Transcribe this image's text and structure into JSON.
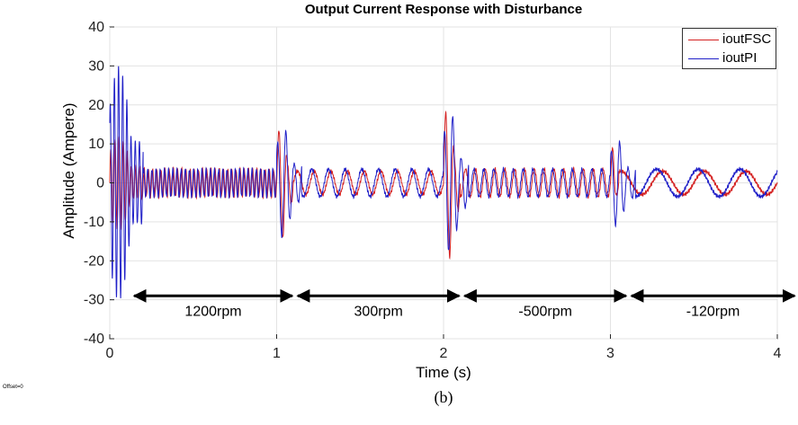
{
  "chart_data": {
    "type": "line",
    "title": "Output Current Response with Disturbance",
    "xlabel": "Time (s)",
    "ylabel": "Amplitude (Ampere)",
    "xlim": [
      0,
      4
    ],
    "ylim": [
      -40,
      40
    ],
    "xticks": [
      0,
      1,
      2,
      3,
      4
    ],
    "yticks": [
      40,
      30,
      20,
      10,
      0,
      -10,
      -20,
      -30,
      -40
    ],
    "grid": true,
    "legend_position": "top-right",
    "series": [
      {
        "name": "ioutFSC",
        "color": "#d42020",
        "segments": [
          {
            "t_start": 0.0,
            "t_end": 0.2,
            "frequency_hz": 40,
            "amplitude": 12,
            "note": "startup transient"
          },
          {
            "t_start": 0.2,
            "t_end": 1.0,
            "frequency_hz": 40,
            "amplitude": 3.5
          },
          {
            "t_start": 1.0,
            "t_end": 1.1,
            "frequency_hz": 20,
            "amplitude": 15,
            "note": "transient"
          },
          {
            "t_start": 1.1,
            "t_end": 2.0,
            "frequency_hz": 10,
            "amplitude": 3
          },
          {
            "t_start": 2.0,
            "t_end": 2.1,
            "frequency_hz": 20,
            "amplitude": 20,
            "note": "transient"
          },
          {
            "t_start": 2.1,
            "t_end": 3.0,
            "frequency_hz": 17,
            "amplitude": 3.5
          },
          {
            "t_start": 3.0,
            "t_end": 3.05,
            "frequency_hz": 20,
            "amplitude": 9,
            "note": "transient"
          },
          {
            "t_start": 3.05,
            "t_end": 4.0,
            "frequency_hz": 4,
            "amplitude": 3
          }
        ]
      },
      {
        "name": "ioutPI",
        "color": "#2020c8",
        "segments": [
          {
            "t_start": 0.0,
            "t_end": 0.2,
            "frequency_hz": 40,
            "amplitude": 30,
            "note": "startup transient"
          },
          {
            "t_start": 0.2,
            "t_end": 1.0,
            "frequency_hz": 40,
            "amplitude": 3.5
          },
          {
            "t_start": 1.0,
            "t_end": 1.15,
            "frequency_hz": 20,
            "amplitude": 14,
            "note": "transient"
          },
          {
            "t_start": 1.15,
            "t_end": 2.0,
            "frequency_hz": 10,
            "amplitude": 3.5
          },
          {
            "t_start": 2.0,
            "t_end": 2.15,
            "frequency_hz": 20,
            "amplitude": 18,
            "note": "transient"
          },
          {
            "t_start": 2.15,
            "t_end": 3.0,
            "frequency_hz": 17,
            "amplitude": 3.5
          },
          {
            "t_start": 3.0,
            "t_end": 3.15,
            "frequency_hz": 20,
            "amplitude": 11,
            "note": "transient"
          },
          {
            "t_start": 3.15,
            "t_end": 4.0,
            "frequency_hz": 4,
            "amplitude": 3.5
          }
        ]
      }
    ],
    "annotations": [
      {
        "label": "1200rpm",
        "t_start": 0.13,
        "t_end": 1.11,
        "y": -29
      },
      {
        "label": "300rpm",
        "t_start": 1.11,
        "t_end": 2.11,
        "y": -29
      },
      {
        "label": "-500rpm",
        "t_start": 2.11,
        "t_end": 3.11,
        "y": -29
      },
      {
        "label": "-120rpm",
        "t_start": 3.11,
        "t_end": 4.12,
        "y": -29
      }
    ]
  },
  "figure_caption": "(b)",
  "offset_label": "Offset=0"
}
